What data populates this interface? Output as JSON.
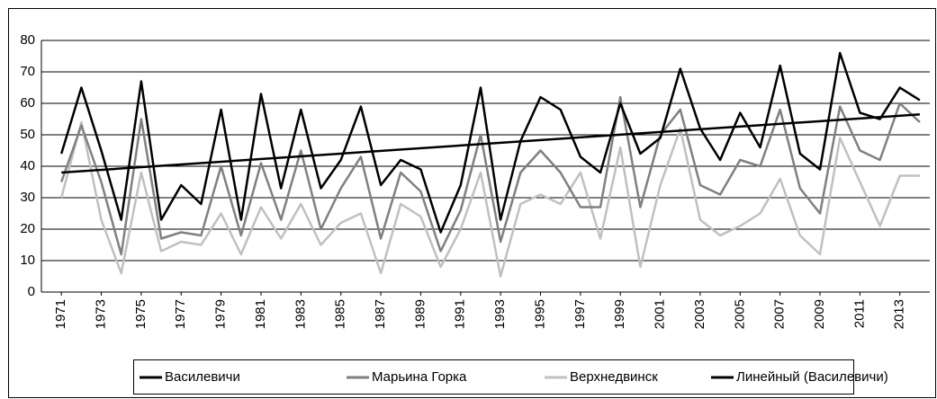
{
  "chart_data": {
    "type": "line",
    "x": [
      1971,
      1972,
      1973,
      1974,
      1975,
      1976,
      1977,
      1978,
      1979,
      1980,
      1981,
      1982,
      1983,
      1984,
      1985,
      1986,
      1987,
      1988,
      1989,
      1990,
      1991,
      1992,
      1993,
      1994,
      1995,
      1996,
      1997,
      1998,
      1999,
      2000,
      2001,
      2002,
      2003,
      2004,
      2005,
      2006,
      2007,
      2008,
      2009,
      2010,
      2011,
      2012,
      2013,
      2014
    ],
    "xlim": [
      1970,
      2014.5
    ],
    "xticks": [
      1971,
      1973,
      1975,
      1977,
      1979,
      1981,
      1983,
      1985,
      1987,
      1989,
      1991,
      1993,
      1995,
      1997,
      1999,
      2001,
      2003,
      2005,
      2007,
      2009,
      2011,
      2013
    ],
    "ylim": [
      0,
      80
    ],
    "yticks": [
      0,
      10,
      20,
      30,
      40,
      50,
      60,
      70,
      80
    ],
    "grid": true,
    "legend": "bottom",
    "series": [
      {
        "name": "Василевичи",
        "color": "#000000",
        "values": [
          44,
          65,
          45,
          23,
          67,
          23,
          34,
          28,
          58,
          23,
          63,
          33,
          58,
          33,
          42,
          59,
          34,
          42,
          39,
          19,
          34,
          65,
          23,
          48,
          62,
          58,
          43,
          38,
          60,
          44,
          49,
          71,
          52,
          42,
          57,
          46,
          72,
          44,
          39,
          76,
          57,
          55,
          65,
          61
        ]
      },
      {
        "name": "Марьина Горка",
        "color": "#808080",
        "values": [
          35,
          53,
          35,
          12,
          55,
          17,
          19,
          18,
          40,
          18,
          41,
          23,
          45,
          20,
          33,
          43,
          17,
          38,
          32,
          13,
          26,
          50,
          16,
          38,
          45,
          38,
          27,
          27,
          62,
          27,
          50,
          58,
          34,
          31,
          42,
          40,
          58,
          33,
          25,
          59,
          45,
          42,
          60,
          54
        ]
      },
      {
        "name": "Верхнедвинск",
        "color": "#c0c0c0",
        "values": [
          30,
          54,
          23,
          6,
          38,
          13,
          16,
          15,
          25,
          12,
          27,
          17,
          28,
          15,
          22,
          25,
          6,
          28,
          24,
          8,
          20,
          38,
          5,
          28,
          31,
          28,
          38,
          17,
          46,
          8,
          34,
          52,
          23,
          18,
          21,
          25,
          36,
          18,
          12,
          49,
          35,
          21,
          37,
          37
        ]
      },
      {
        "name": "Линейный (Василевичи)",
        "color": "#000000",
        "x": [
          1971,
          2014
        ],
        "values": [
          38,
          56.5
        ]
      }
    ]
  }
}
